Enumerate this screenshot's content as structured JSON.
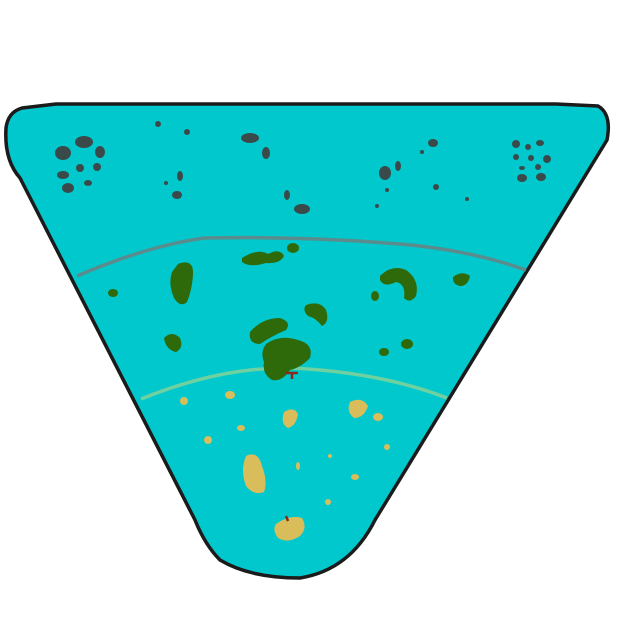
{
  "map": {
    "kind": "world-map-wedge",
    "colors": {
      "background": "#ffffff",
      "ocean": "#00c8cc",
      "outline": "#1b1b1b",
      "rock": "#3a4a4a",
      "forest": "#2f6a0a",
      "sand": "#d9bd5a",
      "cold_band": "#5a8c8e",
      "warm_band": "#6fd1a0",
      "marker": "#8b2a1a"
    },
    "zones": [
      {
        "name": "rocky-zone",
        "terrain": "rock"
      },
      {
        "name": "forest-zone",
        "terrain": "forest"
      },
      {
        "name": "desert-zone",
        "terrain": "sand"
      }
    ],
    "markers": [
      {
        "name": "forest-marker"
      },
      {
        "name": "desert-marker"
      }
    ]
  }
}
